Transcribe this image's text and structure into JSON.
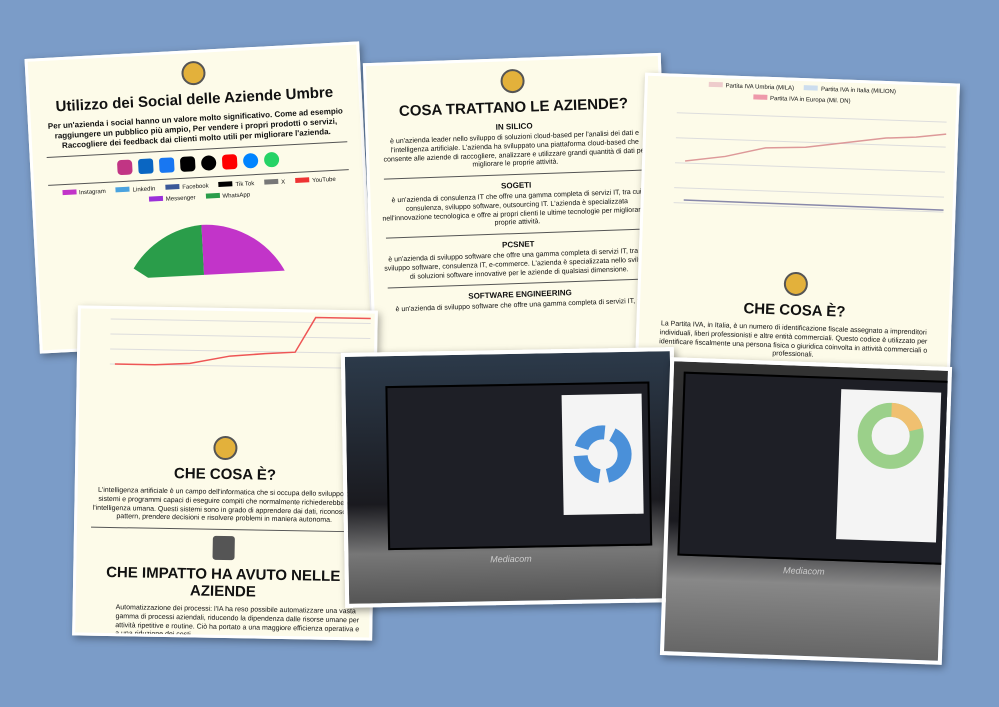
{
  "cards": [
    {
      "title": "Utilizzo dei Social delle Aziende Umbre",
      "text": "Per un'azienda i social hanno un valore molto significativo. Come ad esempio raggiungere un pubblico più ampio, Per vendere i propri prodotti o servizi, Raccogliere dei feedback dai clienti molto utili per migliorare l'azienda.",
      "legend": [
        "Instagram",
        "LinkedIn",
        "Facebook",
        "Tik Tok",
        "X",
        "YouTube",
        "Messenger",
        "WhatsApp"
      ]
    },
    {
      "title": "COSA TRATTANO LE AZIENDE?",
      "sections": [
        {
          "name": "IN SILICO",
          "text": "è un'azienda leader nello sviluppo di soluzioni cloud-based per l'analisi dei dati e l'intelligenza artificiale. L'azienda ha sviluppato una piattaforma cloud-based che consente alle aziende di raccogliere, analizzare e utilizzare grandi quantità di dati per migliorare le proprie attività."
        },
        {
          "name": "SOGETI",
          "text": "è un'azienda di consulenza IT che offre una gamma completa di servizi IT, tra cui consulenza, sviluppo software, outsourcing IT. L'azienda è specializzata nell'innovazione tecnologica e offre ai propri clienti le ultime tecnologie per migliorare le proprie attività."
        },
        {
          "name": "PCSNET",
          "text": "è un'azienda di sviluppo software che offre una gamma completa di servizi IT, tra cui sviluppo software, consulenza IT, e-commerce. L'azienda è specializzata nello sviluppo di soluzioni software innovative per le aziende di qualsiasi dimensione."
        },
        {
          "name": "SOFTWARE ENGINEERING",
          "text": "è un'azienda di sviluppo software che offre una gamma completa di servizi IT, tra"
        }
      ]
    },
    {
      "legend": [
        "Partita IVA Umbria (MILA)",
        "Partita IVA in Italia (MILION)",
        "Partita IVA in Europa (Mil. DN)"
      ],
      "title": "CHE COSA È?",
      "text": "La Partita IVA, in Italia, è un numero di identificazione fiscale assegnato a imprenditori individuali, liberi professionisti e altre entità commerciali. Questo codice è utilizzato per identificare fiscalmente una persona fisica o giuridica coinvolta in attività commerciali o professionali."
    },
    {
      "title": "CHE COSA È?",
      "text": "L'intelligenza artificiale è un campo dell'informatica che si occupa dello sviluppo di sistemi e programmi capaci di eseguire compiti che normalmente richiederebbero l'intelligenza umana. Questi sistemi sono in grado di apprendere dai dati, riconoscere pattern, prendere decisioni e risolvere problemi in maniera autonoma.",
      "title2": "CHE IMPATTO HA AVUTO NELLE AZIENDE",
      "bullet": "Automatizzazione dei processi: l'IA ha reso possibile automatizzare una vasta gamma di processi aziendali, riducendo la dipendenza dalle risorse umane per attività ripetitive e routine. Ciò ha portato a una maggiore efficienza operativa e a una riduzione dei costi."
    }
  ],
  "photos": {
    "brand": "Mediacom"
  }
}
